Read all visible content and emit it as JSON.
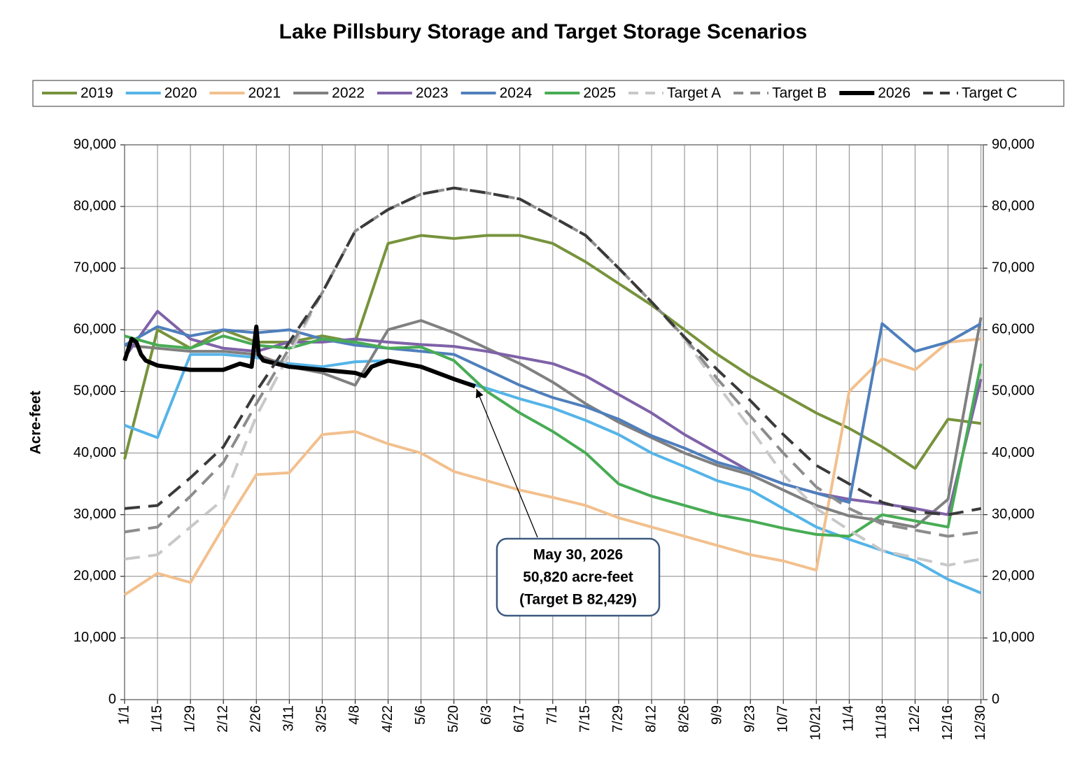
{
  "chart_data": {
    "type": "line",
    "title": "Lake Pillsbury Storage and Target Storage Scenarios",
    "ylabel": "Acre-feet",
    "xlim": [
      1,
      366
    ],
    "xticks": [
      {
        "value": 1,
        "label": "1/1"
      },
      {
        "value": 15,
        "label": "1/15"
      },
      {
        "value": 29,
        "label": "1/29"
      },
      {
        "value": 43,
        "label": "2/12"
      },
      {
        "value": 57,
        "label": "2/26"
      },
      {
        "value": 71,
        "label": "3/11"
      },
      {
        "value": 85,
        "label": "3/25"
      },
      {
        "value": 99,
        "label": "4/8"
      },
      {
        "value": 113,
        "label": "4/22"
      },
      {
        "value": 127,
        "label": "5/6"
      },
      {
        "value": 141,
        "label": "5/20"
      },
      {
        "value": 155,
        "label": "6/3"
      },
      {
        "value": 169,
        "label": "6/17"
      },
      {
        "value": 183,
        "label": "7/1"
      },
      {
        "value": 197,
        "label": "7/15"
      },
      {
        "value": 211,
        "label": "7/29"
      },
      {
        "value": 225,
        "label": "8/12"
      },
      {
        "value": 239,
        "label": "8/26"
      },
      {
        "value": 253,
        "label": "9/9"
      },
      {
        "value": 267,
        "label": "9/23"
      },
      {
        "value": 281,
        "label": "10/7"
      },
      {
        "value": 295,
        "label": "10/21"
      },
      {
        "value": 309,
        "label": "11/4"
      },
      {
        "value": 323,
        "label": "11/18"
      },
      {
        "value": 337,
        "label": "12/2"
      },
      {
        "value": 351,
        "label": "12/16"
      },
      {
        "value": 365,
        "label": "12/30"
      }
    ],
    "ylim": [
      0,
      90000
    ],
    "yticks": [
      0,
      {
        "value": 10000,
        "label": "10,000"
      },
      {
        "value": 20000,
        "label": "20,000"
      },
      {
        "value": 30000,
        "label": "30,000"
      },
      {
        "value": 40000,
        "label": "40,000"
      },
      {
        "value": 50000,
        "label": "50,000"
      },
      {
        "value": 60000,
        "label": "60,000"
      },
      {
        "value": 70000,
        "label": "70,000"
      },
      {
        "value": 80000,
        "label": "80,000"
      },
      {
        "value": 90000,
        "label": "90,000"
      }
    ],
    "y2lim": [
      0,
      90000
    ],
    "y2ticks": [
      0,
      {
        "value": 10000,
        "label": "10,000"
      },
      {
        "value": 20000,
        "label": "20,000"
      },
      {
        "value": 30000,
        "label": "30,000"
      },
      {
        "value": 40000,
        "label": "40,000"
      },
      {
        "value": 50000,
        "label": "50,000"
      },
      {
        "value": 60000,
        "label": "60,000"
      },
      {
        "value": 70000,
        "label": "70,000"
      },
      {
        "value": 80000,
        "label": "80,000"
      },
      {
        "value": 90000,
        "label": "90,000"
      }
    ],
    "grid": true,
    "legend": "top",
    "x": [
      1,
      15,
      29,
      43,
      57,
      71,
      85,
      99,
      113,
      127,
      141,
      155,
      169,
      183,
      197,
      211,
      225,
      239,
      253,
      267,
      281,
      295,
      309,
      323,
      337,
      351,
      365
    ],
    "series": [
      {
        "name": "2019",
        "color": "#77933c",
        "values": [
          39000,
          60000,
          57000,
          60000,
          58000,
          58000,
          59000,
          58000,
          74000,
          75300,
          74800,
          75300,
          75300,
          74000,
          71000,
          67500,
          64000,
          60000,
          56000,
          52500,
          49500,
          46500,
          44000,
          41000,
          37500,
          45500,
          44800
        ]
      },
      {
        "name": "2020",
        "color": "#55b4e8",
        "values": [
          44500,
          42500,
          56000,
          56000,
          55500,
          54500,
          54000,
          54800,
          55000,
          54000,
          52000,
          50500,
          48800,
          47300,
          45300,
          43000,
          40000,
          37800,
          35500,
          34000,
          31000,
          28000,
          26000,
          24200,
          22500,
          19500,
          17300
        ]
      },
      {
        "name": "2021",
        "color": "#f2c08e",
        "values": [
          17000,
          20500,
          19000,
          28000,
          36500,
          36800,
          43000,
          43500,
          41500,
          40000,
          37000,
          35500,
          34000,
          32800,
          31500,
          29500,
          28000,
          26500,
          25000,
          23500,
          22500,
          21000,
          50000,
          55300,
          53500,
          58000,
          58500
        ]
      },
      {
        "name": "2022",
        "color": "#808080",
        "values": [
          57500,
          57000,
          56500,
          56500,
          56000,
          54000,
          53000,
          51000,
          60000,
          61500,
          59500,
          57000,
          54500,
          51500,
          48000,
          45000,
          42500,
          40000,
          38000,
          36500,
          34000,
          31500,
          29800,
          29000,
          28000,
          32500,
          62000
        ]
      },
      {
        "name": "2023",
        "color": "#7f62a8",
        "values": [
          55500,
          63000,
          58500,
          57000,
          56500,
          58000,
          58000,
          58500,
          58000,
          57600,
          57300,
          56500,
          55500,
          54500,
          52500,
          49500,
          46500,
          43000,
          40000,
          37000,
          35000,
          33500,
          32500,
          31800,
          31000,
          30000,
          52000
        ]
      },
      {
        "name": "2024",
        "color": "#4f7fbc",
        "values": [
          57500,
          60500,
          59000,
          60000,
          59500,
          60000,
          58500,
          57500,
          57000,
          56500,
          56000,
          53500,
          51000,
          49000,
          47500,
          45500,
          42800,
          40800,
          38500,
          37000,
          35000,
          33500,
          32000,
          61000,
          56500,
          58000,
          61000
        ]
      },
      {
        "name": "2025",
        "color": "#48ac55",
        "values": [
          59000,
          57500,
          57000,
          59000,
          57500,
          57000,
          58500,
          58000,
          57000,
          57200,
          55000,
          50000,
          46500,
          43500,
          40000,
          35000,
          33000,
          31500,
          30000,
          29000,
          27800,
          26800,
          26500,
          30000,
          29000,
          28000,
          54500
        ]
      },
      {
        "name": "Target A",
        "color": "#c8c8c8",
        "dash": true,
        "values": [
          22800,
          23500,
          28000,
          32500,
          46000,
          56000,
          66000,
          76000,
          79500,
          82000,
          83000,
          82200,
          81200,
          78300,
          75300,
          70000,
          64500,
          58500,
          51000,
          44000,
          36500,
          31000,
          27500,
          24200,
          23000,
          21800,
          22800
        ]
      },
      {
        "name": "Target B",
        "color": "#8c8c8c",
        "dash": true,
        "values": [
          27200,
          28000,
          33000,
          38500,
          48000,
          57000,
          66000,
          76000,
          79500,
          82000,
          83000,
          82200,
          81200,
          78300,
          75300,
          70000,
          64500,
          58800,
          52000,
          46000,
          40000,
          34500,
          31000,
          28500,
          27500,
          26500,
          27200
        ]
      },
      {
        "name": "2026",
        "color": "#000000",
        "thick": true,
        "x": [
          1,
          4,
          6,
          8,
          10,
          15,
          29,
          43,
          50,
          55,
          57,
          58,
          60,
          71,
          85,
          99,
          103,
          106,
          113,
          127,
          141,
          150
        ],
        "values": [
          55000,
          58500,
          58000,
          56000,
          55000,
          54200,
          53500,
          53500,
          54500,
          54000,
          60500,
          56000,
          55000,
          54000,
          53500,
          53000,
          52500,
          54000,
          55000,
          54000,
          52000,
          50820
        ]
      },
      {
        "name": "Target C",
        "color": "#3a3a3a",
        "dash": true,
        "values": [
          31000,
          31500,
          36000,
          41000,
          50000,
          58000,
          66000,
          76000,
          79500,
          82000,
          83000,
          82200,
          81200,
          78300,
          75300,
          70000,
          64500,
          58800,
          53500,
          48500,
          43000,
          38000,
          35000,
          32000,
          30500,
          30000,
          31000
        ]
      }
    ],
    "annotation": {
      "lines": [
        "May 30, 2026",
        "50,820 acre-feet",
        "(Target B 82,429)"
      ]
    }
  }
}
